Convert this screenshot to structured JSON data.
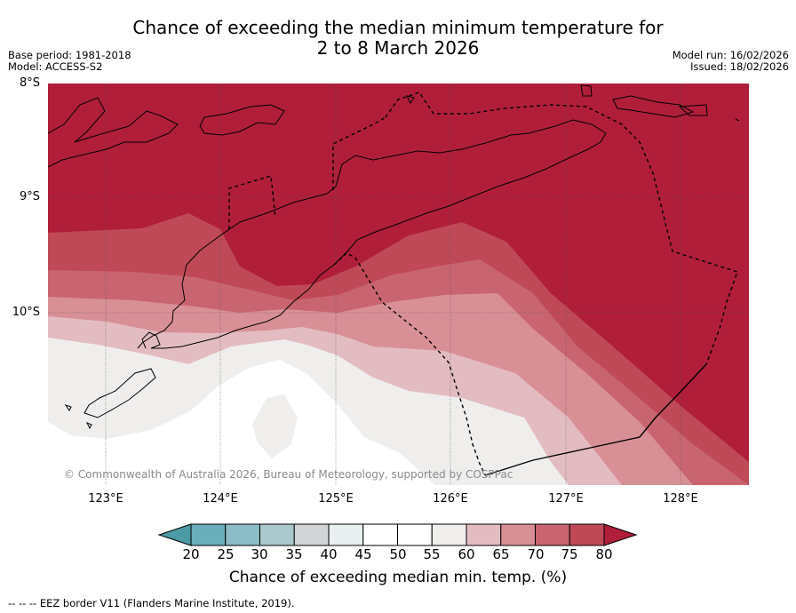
{
  "title": {
    "line1": "Chance of exceeding the median minimum temperature for",
    "line2": "2 to 8 March 2026"
  },
  "meta": {
    "base_period": "Base period: 1981-2018",
    "model": "Model: ACCESS-S2",
    "model_run": "Model run: 16/02/2026",
    "issued": "Issued: 18/02/2026"
  },
  "map": {
    "lat_labels": [
      "8°S",
      "9°S",
      "10°S"
    ],
    "lon_labels": [
      "123°E",
      "124°E",
      "125°E",
      "126°E",
      "127°E",
      "128°E"
    ],
    "copyright": "© Commonwealth of Australia 2026, Bureau of Meteorology, supported by COSPPac",
    "lat_range": [
      -11.5,
      -8.0
    ],
    "lon_range": [
      122.5,
      128.6
    ]
  },
  "colorbar": {
    "ticks": [
      "20",
      "25",
      "30",
      "35",
      "40",
      "45",
      "50",
      "55",
      "60",
      "65",
      "70",
      "75",
      "80"
    ],
    "title": "Chance of exceeding median min. temp. (%)",
    "colors": {
      "lt20": "#4b9aa6",
      "b20_25": "#6aaebb",
      "b25_30": "#8cbcc5",
      "b30_35": "#a9c8cb",
      "b35_40": "#d2d5d6",
      "b40_45": "#e9eef1",
      "b45_50": "#ffffff",
      "b50_55": "#ffffff",
      "b55_60": "#efeeec",
      "b60_65": "#e3bcc1",
      "b65_70": "#d98f96",
      "b70_75": "#c96570",
      "b75_80": "#bf4956",
      "gt80": "#b01e3a"
    }
  },
  "footer": "--  --  -- EEZ border V11 (Flanders Marine Institute, 2019)."
}
